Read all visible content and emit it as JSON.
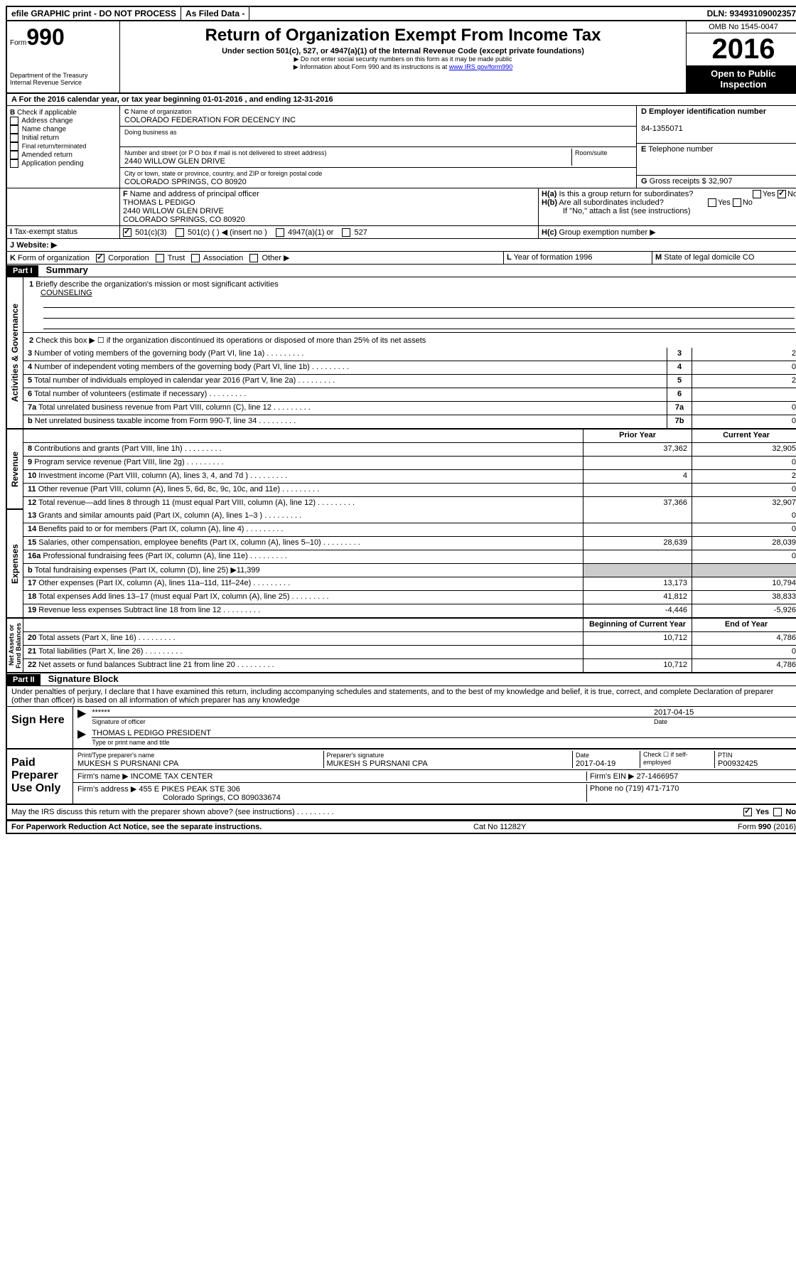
{
  "top_bar": {
    "efile": "efile GRAPHIC print - DO NOT PROCESS",
    "asfiled": "As Filed Data -",
    "dln": "DLN: 93493109002357"
  },
  "header": {
    "form_label": "Form",
    "form_num": "990",
    "dept": "Department of the Treasury",
    "irs": "Internal Revenue Service",
    "title": "Return of Organization Exempt From Income Tax",
    "subtitle": "Under section 501(c), 527, or 4947(a)(1) of the Internal Revenue Code (except private foundations)",
    "note1": "▶ Do not enter social security numbers on this form as it may be made public",
    "note2": "▶ Information about Form 990 and its instructions is at ",
    "link": "www IRS gov/form990",
    "omb": "OMB No 1545-0047",
    "year": "2016",
    "inspection": "Open to Public Inspection"
  },
  "line_a": "For the 2016 calendar year, or tax year beginning 01-01-2016  , and ending 12-31-2016",
  "box_b": {
    "title": "Check if applicable",
    "opts": [
      "Address change",
      "Name change",
      "Initial return",
      "Final return/terminated",
      "Amended return",
      "Application pending"
    ]
  },
  "box_c": {
    "name_label": "Name of organization",
    "name": "COLORADO FEDERATION FOR DECENCY INC",
    "dba_label": "Doing business as",
    "dba": "",
    "addr_label": "Number and street (or P O  box if mail is not delivered to street address)",
    "room_label": "Room/suite",
    "addr": "2440 WILLOW GLEN DRIVE",
    "city_label": "City or town, state or province, country, and ZIP or foreign postal code",
    "city": "COLORADO SPRINGS, CO  80920"
  },
  "box_d": {
    "label": "Employer identification number",
    "val": "84-1355071"
  },
  "box_e": {
    "label": "Telephone number",
    "val": ""
  },
  "box_g": {
    "label": "Gross receipts $",
    "val": "32,907"
  },
  "box_f": {
    "label": "Name and address of principal officer",
    "name": "THOMAS L PEDIGO",
    "addr": "2440 WILLOW GLEN DRIVE",
    "city": "COLORADO SPRINGS, CO  80920"
  },
  "box_h": {
    "a": "Is this a group return for subordinates?",
    "b": "Are all subordinates included?",
    "note": "If \"No,\" attach a list  (see instructions)",
    "c": "Group exemption number ▶"
  },
  "line_i": {
    "label": "Tax-exempt status",
    "opts": [
      "501(c)(3)",
      "501(c) (  ) ◀ (insert no )",
      "4947(a)(1) or",
      "527"
    ]
  },
  "line_j": "Website: ▶",
  "line_k": {
    "label": "Form of organization",
    "opts": [
      "Corporation",
      "Trust",
      "Association",
      "Other ▶"
    ]
  },
  "line_l": {
    "label": "Year of formation",
    "val": "1996"
  },
  "line_m": {
    "label": "State of legal domicile",
    "val": "CO"
  },
  "part1": {
    "header": "Part I",
    "title": "Summary",
    "q1": "Briefly describe the organization's mission or most significant activities",
    "q1_val": "COUNSELING",
    "q2": "Check this box ▶ ☐ if the organization discontinued its operations or disposed of more than 25% of its net assets",
    "activities": [
      {
        "n": "3",
        "t": "Number of voting members of the governing body (Part VI, line 1a)",
        "b": "3",
        "v": "2"
      },
      {
        "n": "4",
        "t": "Number of independent voting members of the governing body (Part VI, line 1b)",
        "b": "4",
        "v": "0"
      },
      {
        "n": "5",
        "t": "Total number of individuals employed in calendar year 2016 (Part V, line 2a)",
        "b": "5",
        "v": "2"
      },
      {
        "n": "6",
        "t": "Total number of volunteers (estimate if necessary)",
        "b": "6",
        "v": ""
      },
      {
        "n": "7a",
        "t": "Total unrelated business revenue from Part VIII, column (C), line 12",
        "b": "7a",
        "v": "0"
      },
      {
        "n": "b",
        "t": "Net unrelated business taxable income from Form 990-T, line 34",
        "b": "7b",
        "v": "0"
      }
    ],
    "col_prior": "Prior Year",
    "col_current": "Current Year",
    "revenue": [
      {
        "n": "8",
        "t": "Contributions and grants (Part VIII, line 1h)",
        "p": "37,362",
        "c": "32,905"
      },
      {
        "n": "9",
        "t": "Program service revenue (Part VIII, line 2g)",
        "p": "",
        "c": "0"
      },
      {
        "n": "10",
        "t": "Investment income (Part VIII, column (A), lines 3, 4, and 7d )",
        "p": "4",
        "c": "2"
      },
      {
        "n": "11",
        "t": "Other revenue (Part VIII, column (A), lines 5, 6d, 8c, 9c, 10c, and 11e)",
        "p": "",
        "c": "0"
      },
      {
        "n": "12",
        "t": "Total revenue—add lines 8 through 11 (must equal Part VIII, column (A), line 12)",
        "p": "37,366",
        "c": "32,907"
      }
    ],
    "expenses": [
      {
        "n": "13",
        "t": "Grants and similar amounts paid (Part IX, column (A), lines 1–3 )",
        "p": "",
        "c": "0"
      },
      {
        "n": "14",
        "t": "Benefits paid to or for members (Part IX, column (A), line 4)",
        "p": "",
        "c": "0"
      },
      {
        "n": "15",
        "t": "Salaries, other compensation, employee benefits (Part IX, column (A), lines 5–10)",
        "p": "28,639",
        "c": "28,039"
      },
      {
        "n": "16a",
        "t": "Professional fundraising fees (Part IX, column (A), line 11e)",
        "p": "",
        "c": "0"
      },
      {
        "n": "b",
        "t": "Total fundraising expenses (Part IX, column (D), line 25) ▶11,399",
        "p": "gray",
        "c": "gray"
      },
      {
        "n": "17",
        "t": "Other expenses (Part IX, column (A), lines 11a–11d, 11f–24e)",
        "p": "13,173",
        "c": "10,794"
      },
      {
        "n": "18",
        "t": "Total expenses  Add lines 13–17 (must equal Part IX, column (A), line 25)",
        "p": "41,812",
        "c": "38,833"
      },
      {
        "n": "19",
        "t": "Revenue less expenses  Subtract line 18 from line 12",
        "p": "-4,446",
        "c": "-5,926"
      }
    ],
    "col_begin": "Beginning of Current Year",
    "col_end": "End of Year",
    "netassets": [
      {
        "n": "20",
        "t": "Total assets (Part X, line 16)",
        "p": "10,712",
        "c": "4,786"
      },
      {
        "n": "21",
        "t": "Total liabilities (Part X, line 26)",
        "p": "",
        "c": "0"
      },
      {
        "n": "22",
        "t": "Net assets or fund balances  Subtract line 21 from line 20",
        "p": "10,712",
        "c": "4,786"
      }
    ],
    "vert_labels": {
      "gov": "Activities & Governance",
      "rev": "Revenue",
      "exp": "Expenses",
      "net": "Net Assets or Fund Balances"
    }
  },
  "part2": {
    "header": "Part II",
    "title": "Signature Block",
    "perjury": "Under penalties of perjury, I declare that I have examined this return, including accompanying schedules and statements, and to the best of my knowledge and belief, it is true, correct, and complete  Declaration of preparer (other than officer) is based on all information of which preparer has any knowledge",
    "sign_here": "Sign Here",
    "stars": "******",
    "sig_officer": "Signature of officer",
    "sig_date": "2017-04-15",
    "date_label": "Date",
    "officer_name": "THOMAS L PEDIGO PRESIDENT",
    "type_label": "Type or print name and title",
    "paid": "Paid Preparer Use Only",
    "prep_name_label": "Print/Type preparer's name",
    "prep_name": "MUKESH S PURSNANI CPA",
    "prep_sig_label": "Preparer's signature",
    "prep_sig": "MUKESH S PURSNANI CPA",
    "prep_date_label": "Date",
    "prep_date": "2017-04-19",
    "check_self": "Check ☐ if self-employed",
    "ptin_label": "PTIN",
    "ptin": "P00932425",
    "firm_name_label": "Firm's name  ▶",
    "firm_name": "INCOME TAX CENTER",
    "firm_ein_label": "Firm's EIN ▶",
    "firm_ein": "27-1466957",
    "firm_addr_label": "Firm's address ▶",
    "firm_addr": "455 E PIKES PEAK STE 306",
    "firm_city": "Colorado Springs, CO  809033674",
    "phone_label": "Phone no",
    "phone": "(719) 471-7170",
    "discuss": "May the IRS discuss this return with the preparer shown above? (see instructions)"
  },
  "footer": {
    "left": "For Paperwork Reduction Act Notice, see the separate instructions.",
    "center": "Cat  No  11282Y",
    "right": "Form 990 (2016)"
  }
}
